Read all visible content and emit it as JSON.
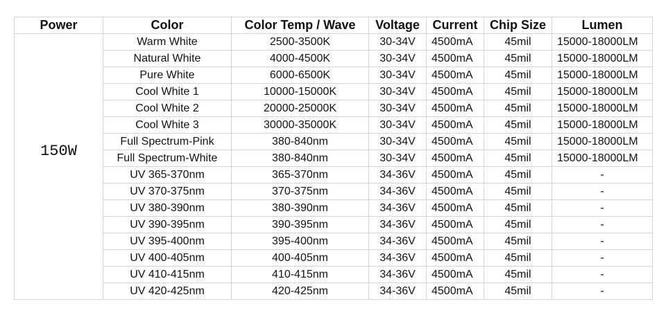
{
  "header": {
    "columns": [
      "Power",
      "Color",
      "Color Temp / Wave",
      "Voltage",
      "Current",
      "Chip Size",
      "Lumen"
    ]
  },
  "table": {
    "power": "150W",
    "rows": [
      [
        "Warm White",
        "2500-3500K",
        "30-34V",
        "4500mA",
        "45mil",
        "15000-18000LM"
      ],
      [
        "Natural White",
        "4000-4500K",
        "30-34V",
        "4500mA",
        "45mil",
        "15000-18000LM"
      ],
      [
        "Pure White",
        "6000-6500K",
        "30-34V",
        "4500mA",
        "45mil",
        "15000-18000LM"
      ],
      [
        "Cool White 1",
        "10000-15000K",
        "30-34V",
        "4500mA",
        "45mil",
        "15000-18000LM"
      ],
      [
        "Cool White 2",
        "20000-25000K",
        "30-34V",
        "4500mA",
        "45mil",
        "15000-18000LM"
      ],
      [
        "Cool White 3",
        "30000-35000K",
        "30-34V",
        "4500mA",
        "45mil",
        "15000-18000LM"
      ],
      [
        "Full Spectrum-Pink",
        "380-840nm",
        "30-34V",
        "4500mA",
        "45mil",
        "15000-18000LM"
      ],
      [
        "Full Spectrum-White",
        "380-840nm",
        "30-34V",
        "4500mA",
        "45mil",
        "15000-18000LM"
      ],
      [
        "UV 365-370nm",
        "365-370nm",
        "34-36V",
        "4500mA",
        "45mil",
        "-"
      ],
      [
        "UV 370-375nm",
        "370-375nm",
        "34-36V",
        "4500mA",
        "45mil",
        "-"
      ],
      [
        "UV 380-390nm",
        "380-390nm",
        "34-36V",
        "4500mA",
        "45mil",
        "-"
      ],
      [
        "UV 390-395nm",
        "390-395nm",
        "34-36V",
        "4500mA",
        "45mil",
        "-"
      ],
      [
        "UV 395-400nm",
        "395-400nm",
        "34-36V",
        "4500mA",
        "45mil",
        "-"
      ],
      [
        "UV 400-405nm",
        "400-405nm",
        "34-36V",
        "4500mA",
        "45mil",
        "-"
      ],
      [
        "UV 410-415nm",
        "410-415nm",
        "34-36V",
        "4500mA",
        "45mil",
        "-"
      ],
      [
        "UV 420-425nm",
        "420-425nm",
        "34-36V",
        "4500mA",
        "45mil",
        "-"
      ]
    ]
  }
}
